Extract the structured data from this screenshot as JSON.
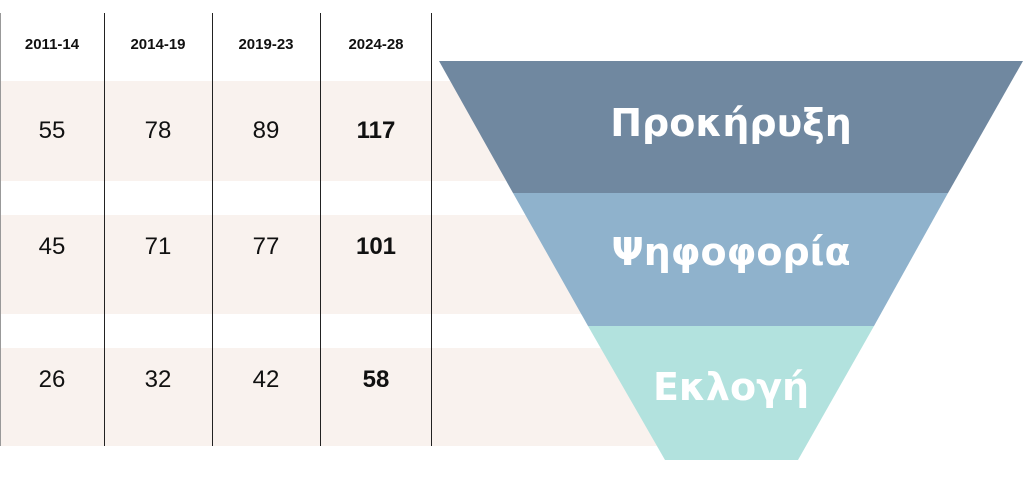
{
  "table": {
    "headers": [
      "2011-14",
      "2014-19",
      "2019-23",
      "2024-28"
    ],
    "rows": [
      [
        "55",
        "78",
        "89",
        "117"
      ],
      [
        "45",
        "71",
        "77",
        "101"
      ],
      [
        "26",
        "32",
        "42",
        "58"
      ]
    ]
  },
  "funnel": {
    "stages": [
      {
        "label": "Προκήρυξη",
        "color": "#7088a0"
      },
      {
        "label": "Ψηφοφορία",
        "color": "#8fb2cc"
      },
      {
        "label": "Εκλογή",
        "color": "#b2e2de"
      }
    ]
  }
}
